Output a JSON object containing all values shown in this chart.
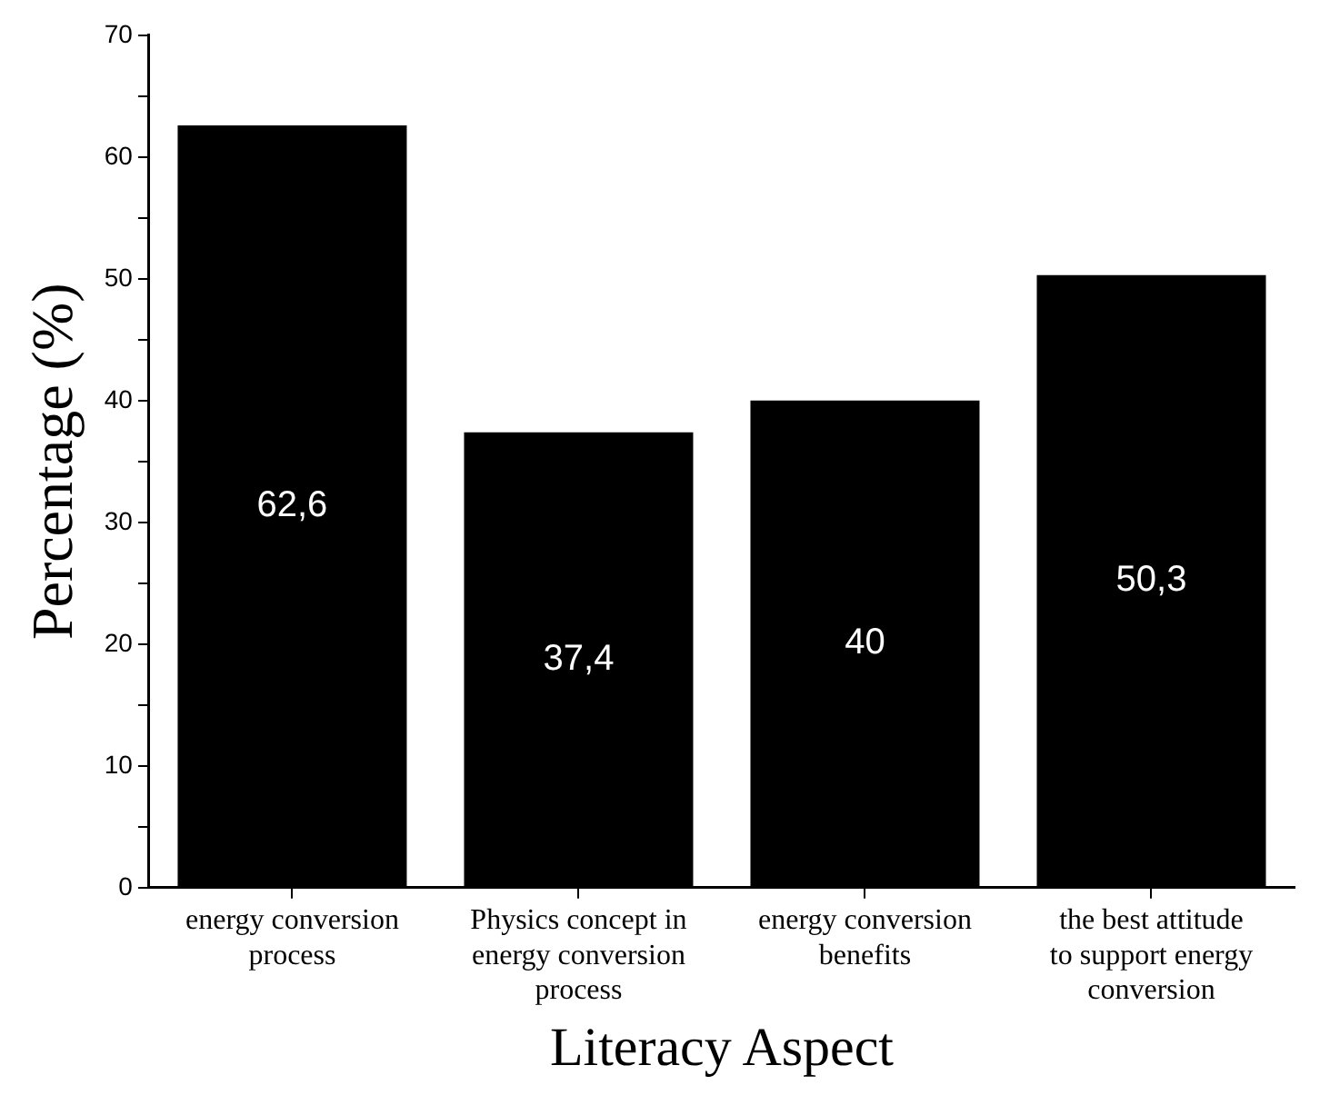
{
  "chart_data": {
    "type": "bar",
    "xlabel": "Literacy Aspect",
    "ylabel": "Percentage (%)",
    "categories": [
      "energy conversion process",
      "Physics concept in energy conversion process",
      "energy conversion benefits",
      "the best attitude to support energy conversion"
    ],
    "values": [
      62.6,
      37.4,
      40,
      50.3
    ],
    "value_labels": [
      "62,6",
      "37,4",
      "40",
      "50,3"
    ],
    "color": "#000000",
    "ylim": [
      0,
      70
    ],
    "yticks": [
      0,
      {
        "value": 5,
        "label": null
      },
      10,
      {
        "value": 15,
        "label": null
      },
      20,
      {
        "value": 25,
        "label": null
      },
      30,
      {
        "value": 35,
        "label": null
      },
      40,
      {
        "value": 45,
        "label": null
      },
      50,
      {
        "value": 55,
        "label": null
      },
      60,
      {
        "value": 65,
        "label": null
      },
      70
    ],
    "grid": false,
    "legend": false
  }
}
